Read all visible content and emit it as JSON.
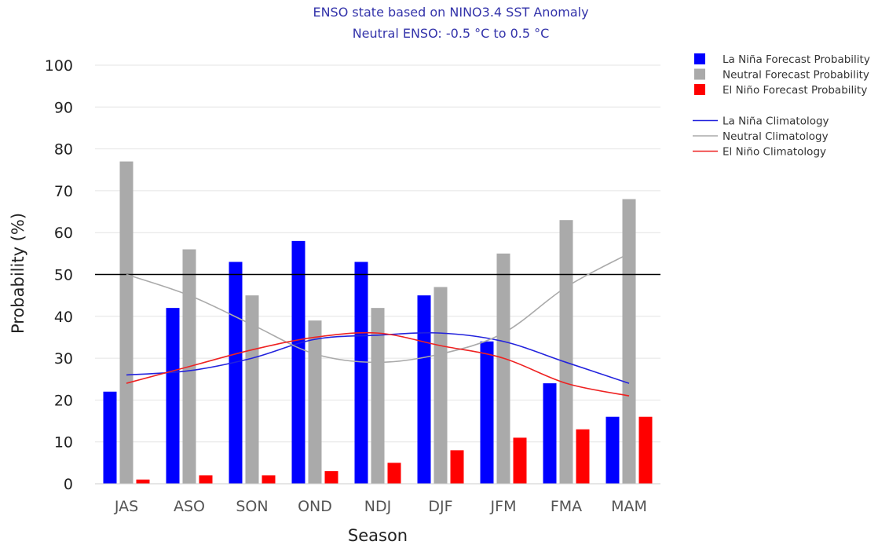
{
  "chart_data": {
    "type": "bar",
    "title": "ENSO state based on NINO3.4 SST Anomaly",
    "subtitle": "Neutral ENSO: -0.5 °C to 0.5 °C",
    "xlabel": "Season",
    "ylabel": "Probability (%)",
    "ylim": [
      0,
      100
    ],
    "yticks": [
      "0",
      "10",
      "20",
      "30",
      "40",
      "50",
      "60",
      "70",
      "80",
      "90",
      "100"
    ],
    "reference_line": 50,
    "grid": true,
    "legend_position": "top-right",
    "categories": [
      "JAS",
      "ASO",
      "SON",
      "OND",
      "NDJ",
      "DJF",
      "JFM",
      "FMA",
      "MAM"
    ],
    "series": [
      {
        "name": "La Niña Forecast Probability",
        "kind": "bar",
        "color": "#0000ff",
        "values": [
          22,
          42,
          53,
          58,
          53,
          45,
          34,
          24,
          16
        ]
      },
      {
        "name": "Neutral Forecast Probability",
        "kind": "bar",
        "color": "#aaaaaa",
        "values": [
          77,
          56,
          45,
          39,
          42,
          47,
          55,
          63,
          68
        ]
      },
      {
        "name": "El Niño Forecast Probability",
        "kind": "bar",
        "color": "#ff0000",
        "values": [
          1,
          2,
          2,
          3,
          5,
          8,
          11,
          13,
          16
        ]
      },
      {
        "name": "La Niña Climatology",
        "kind": "line",
        "color": "#2222dd",
        "values": [
          26,
          27,
          30,
          34.5,
          35.5,
          36,
          34,
          29,
          24
        ]
      },
      {
        "name": "Neutral Climatology",
        "kind": "line",
        "color": "#aaaaaa",
        "values": [
          50,
          45,
          38,
          31,
          29,
          31,
          36,
          47,
          55
        ]
      },
      {
        "name": "El Niño Climatology",
        "kind": "line",
        "color": "#ee2222",
        "values": [
          24,
          28,
          32,
          35,
          36,
          33,
          30,
          24,
          21
        ]
      }
    ]
  }
}
